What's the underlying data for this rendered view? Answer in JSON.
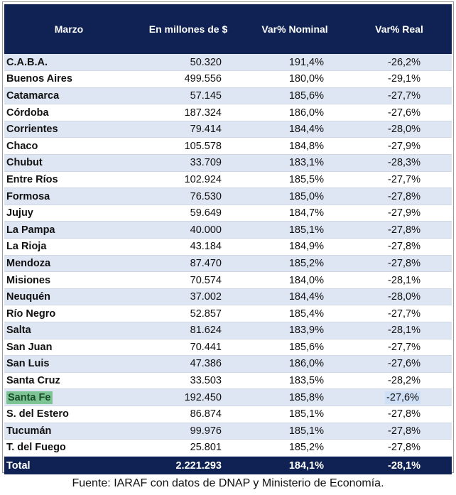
{
  "headers": [
    "Marzo",
    "En millones de $",
    "Var% Nominal",
    "Var% Real"
  ],
  "rows": [
    {
      "name": "C.A.B.A.",
      "value": "50.320",
      "nominal": "191,4%",
      "real": "-26,2%"
    },
    {
      "name": "Buenos Aires",
      "value": "499.556",
      "nominal": "180,0%",
      "real": "-29,1%"
    },
    {
      "name": "Catamarca",
      "value": "57.145",
      "nominal": "185,6%",
      "real": "-27,7%"
    },
    {
      "name": "Córdoba",
      "value": "187.324",
      "nominal": "186,0%",
      "real": "-27,6%"
    },
    {
      "name": "Corrientes",
      "value": "79.414",
      "nominal": "184,4%",
      "real": "-28,0%"
    },
    {
      "name": "Chaco",
      "value": "105.578",
      "nominal": "184,8%",
      "real": "-27,9%"
    },
    {
      "name": "Chubut",
      "value": "33.709",
      "nominal": "183,1%",
      "real": "-28,3%"
    },
    {
      "name": "Entre Ríos",
      "value": "102.924",
      "nominal": "185,5%",
      "real": "-27,7%"
    },
    {
      "name": "Formosa",
      "value": "76.530",
      "nominal": "185,0%",
      "real": "-27,8%"
    },
    {
      "name": "Jujuy",
      "value": "59.649",
      "nominal": "184,7%",
      "real": "-27,9%"
    },
    {
      "name": "La Pampa",
      "value": "40.000",
      "nominal": "185,1%",
      "real": "-27,8%"
    },
    {
      "name": "La Rioja",
      "value": "43.184",
      "nominal": "184,9%",
      "real": "-27,8%"
    },
    {
      "name": "Mendoza",
      "value": "87.470",
      "nominal": "185,2%",
      "real": "-27,8%"
    },
    {
      "name": "Misiones",
      "value": "70.574",
      "nominal": "184,0%",
      "real": "-28,1%"
    },
    {
      "name": "Neuquén",
      "value": "37.002",
      "nominal": "184,4%",
      "real": "-28,0%"
    },
    {
      "name": "Río Negro",
      "value": "52.857",
      "nominal": "185,4%",
      "real": "-27,7%"
    },
    {
      "name": "Salta",
      "value": "81.624",
      "nominal": "183,9%",
      "real": "-28,1%"
    },
    {
      "name": "San Juan",
      "value": "70.441",
      "nominal": "185,6%",
      "real": "-27,7%"
    },
    {
      "name": "San Luis",
      "value": "47.386",
      "nominal": "186,0%",
      "real": "-27,6%"
    },
    {
      "name": "Santa Cruz",
      "value": "33.503",
      "nominal": "183,5%",
      "real": "-28,2%"
    },
    {
      "name": "Santa Fe",
      "value": "192.450",
      "nominal": "185,8%",
      "real": "-27,6%",
      "highlighted": true
    },
    {
      "name": "S. del Estero",
      "value": "86.874",
      "nominal": "185,1%",
      "real": "-27,8%"
    },
    {
      "name": "Tucumán",
      "value": "99.976",
      "nominal": "185,1%",
      "real": "-27,8%"
    },
    {
      "name": "T. del Fuego",
      "value": "25.801",
      "nominal": "185,2%",
      "real": "-27,8%"
    }
  ],
  "total": {
    "name": "Total",
    "value": "2.221.293",
    "nominal": "184,1%",
    "real": "-28,1%"
  },
  "source": "Fuente: IARAF con datos de DNAP y Ministerio de Economía.",
  "colors": {
    "header_bg": "#0f2253",
    "stripe": "#dfe6f3",
    "highlight_name": "#7cc494",
    "highlight_real": "#cfe0f6"
  }
}
